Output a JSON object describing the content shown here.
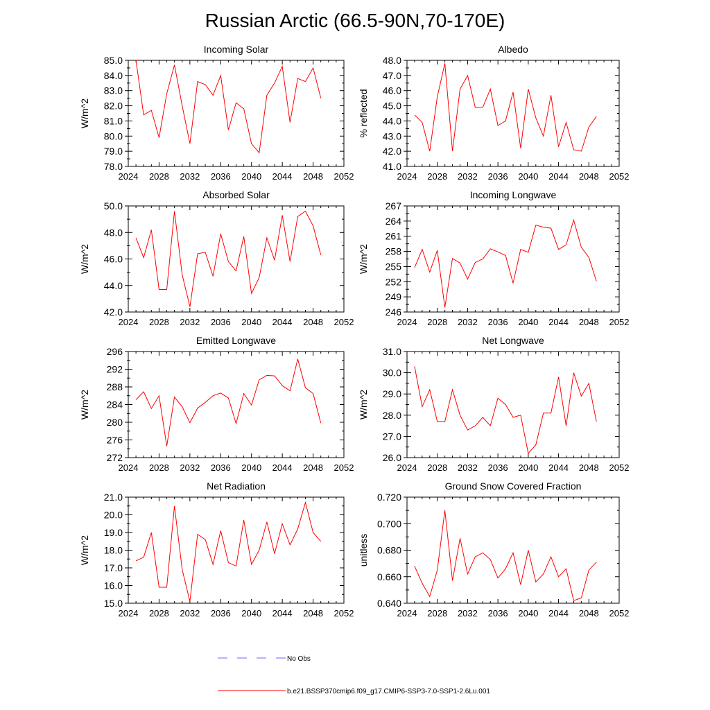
{
  "title": "Russian Arctic (66.5-90N,70-170E)",
  "legend": {
    "obs_label": "No Obs",
    "model_label": "b.e21.BSSP370cmip6.f09_g17.CMIP6-SSP3-7.0-SSP1-2.6Lu.001",
    "obs_color": "#6a6aff",
    "model_color": "#ff0000"
  },
  "chart_data": [
    {
      "type": "line",
      "title": "Incoming Solar",
      "xlabel": "",
      "ylabel": "W/m^2",
      "xlim": [
        2024,
        2052
      ],
      "ylim": [
        78.0,
        85.0
      ],
      "xticks": [
        "2024",
        "2028",
        "2032",
        "2036",
        "2040",
        "2044",
        "2048",
        "2052"
      ],
      "yticks": [
        "78.0",
        "79.0",
        "80.0",
        "81.0",
        "82.0",
        "83.0",
        "84.0",
        "85.0"
      ],
      "series": [
        {
          "x": [
            2025,
            2026,
            2027,
            2028,
            2029,
            2030,
            2031,
            2032,
            2033,
            2034,
            2035,
            2036,
            2037,
            2038,
            2039,
            2040,
            2041,
            2042,
            2043,
            2044,
            2045,
            2046,
            2047,
            2048,
            2049
          ],
          "values": [
            85.0,
            81.4,
            81.7,
            79.9,
            82.8,
            84.7,
            82.0,
            79.5,
            83.6,
            83.4,
            82.7,
            84.0,
            80.4,
            82.2,
            81.8,
            79.5,
            78.9,
            82.7,
            83.5,
            84.6,
            80.9,
            83.8,
            83.6,
            84.5,
            82.5
          ]
        }
      ]
    },
    {
      "type": "line",
      "title": "Albedo",
      "xlabel": "",
      "ylabel": "% reflected",
      "xlim": [
        2024,
        2052
      ],
      "ylim": [
        41.0,
        48.0
      ],
      "xticks": [
        "2024",
        "2028",
        "2032",
        "2036",
        "2040",
        "2044",
        "2048",
        "2052"
      ],
      "yticks": [
        "41.0",
        "42.0",
        "43.0",
        "44.0",
        "45.0",
        "46.0",
        "47.0",
        "48.0"
      ],
      "series": [
        {
          "x": [
            2025,
            2026,
            2027,
            2028,
            2029,
            2030,
            2031,
            2032,
            2033,
            2034,
            2035,
            2036,
            2037,
            2038,
            2039,
            2040,
            2041,
            2042,
            2043,
            2044,
            2045,
            2046,
            2047,
            2048,
            2049
          ],
          "values": [
            44.4,
            43.9,
            42.0,
            45.6,
            47.8,
            42.0,
            46.1,
            47.0,
            44.9,
            44.9,
            46.1,
            43.7,
            44.0,
            45.9,
            42.2,
            46.1,
            44.2,
            43.0,
            45.7,
            42.3,
            43.9,
            42.1,
            42.0,
            43.6,
            44.3
          ]
        }
      ]
    },
    {
      "type": "line",
      "title": "Absorbed Solar",
      "xlabel": "",
      "ylabel": "W/m^2",
      "xlim": [
        2024,
        2052
      ],
      "ylim": [
        42.0,
        50.0
      ],
      "xticks": [
        "2024",
        "2028",
        "2032",
        "2036",
        "2040",
        "2044",
        "2048",
        "2052"
      ],
      "yticks": [
        "42.0",
        "44.0",
        "46.0",
        "48.0",
        "50.0"
      ],
      "series": [
        {
          "x": [
            2025,
            2026,
            2027,
            2028,
            2029,
            2030,
            2031,
            2032,
            2033,
            2034,
            2035,
            2036,
            2037,
            2038,
            2039,
            2040,
            2041,
            2042,
            2043,
            2044,
            2045,
            2046,
            2047,
            2048,
            2049
          ],
          "values": [
            47.6,
            46.1,
            48.2,
            43.7,
            43.7,
            49.6,
            44.8,
            42.4,
            46.4,
            46.5,
            44.7,
            47.9,
            45.8,
            45.1,
            47.7,
            43.4,
            44.6,
            47.6,
            45.9,
            49.3,
            45.8,
            49.2,
            49.6,
            48.5,
            46.3
          ]
        }
      ]
    },
    {
      "type": "line",
      "title": "Incoming Longwave",
      "xlabel": "",
      "ylabel": "W/m^2",
      "xlim": [
        2024,
        2052
      ],
      "ylim": [
        246,
        267
      ],
      "xticks": [
        "2024",
        "2028",
        "2032",
        "2036",
        "2040",
        "2044",
        "2048",
        "2052"
      ],
      "yticks": [
        "246",
        "249",
        "252",
        "255",
        "258",
        "261",
        "264",
        "267"
      ],
      "series": [
        {
          "x": [
            2025,
            2026,
            2027,
            2028,
            2029,
            2030,
            2031,
            2032,
            2033,
            2034,
            2035,
            2036,
            2037,
            2038,
            2039,
            2040,
            2041,
            2042,
            2043,
            2044,
            2045,
            2046,
            2047,
            2048,
            2049
          ],
          "values": [
            254.8,
            258.4,
            253.9,
            258.2,
            246.9,
            256.6,
            255.7,
            252.5,
            255.8,
            256.5,
            258.5,
            257.9,
            257.2,
            251.7,
            258.4,
            257.8,
            263.2,
            262.8,
            262.6,
            258.4,
            259.3,
            264.2,
            258.8,
            256.8,
            252.1
          ]
        }
      ]
    },
    {
      "type": "line",
      "title": "Emitted Longwave",
      "xlabel": "",
      "ylabel": "W/m^2",
      "xlim": [
        2024,
        2052
      ],
      "ylim": [
        272,
        296
      ],
      "xticks": [
        "2024",
        "2028",
        "2032",
        "2036",
        "2040",
        "2044",
        "2048",
        "2052"
      ],
      "yticks": [
        "272",
        "276",
        "280",
        "284",
        "288",
        "292",
        "296"
      ],
      "series": [
        {
          "x": [
            2025,
            2026,
            2027,
            2028,
            2029,
            2030,
            2031,
            2032,
            2033,
            2034,
            2035,
            2036,
            2037,
            2038,
            2039,
            2040,
            2041,
            2042,
            2043,
            2044,
            2045,
            2046,
            2047,
            2048,
            2049
          ],
          "values": [
            285.1,
            286.9,
            283.1,
            286.0,
            274.6,
            285.7,
            283.5,
            279.9,
            283.2,
            284.5,
            286.0,
            286.6,
            285.5,
            279.7,
            286.5,
            283.9,
            289.6,
            290.6,
            290.5,
            288.3,
            287.1,
            294.3,
            287.8,
            286.5,
            279.8
          ]
        }
      ]
    },
    {
      "type": "line",
      "title": "Net Longwave",
      "xlabel": "",
      "ylabel": "W/m^2",
      "xlim": [
        2024,
        2052
      ],
      "ylim": [
        26.0,
        31.0
      ],
      "xticks": [
        "2024",
        "2028",
        "2032",
        "2036",
        "2040",
        "2044",
        "2048",
        "2052"
      ],
      "yticks": [
        "26.0",
        "27.0",
        "28.0",
        "29.0",
        "30.0",
        "31.0"
      ],
      "series": [
        {
          "x": [
            2025,
            2026,
            2027,
            2028,
            2029,
            2030,
            2031,
            2032,
            2033,
            2034,
            2035,
            2036,
            2037,
            2038,
            2039,
            2040,
            2041,
            2042,
            2043,
            2044,
            2045,
            2046,
            2047,
            2048,
            2049
          ],
          "values": [
            30.3,
            28.4,
            29.2,
            27.7,
            27.7,
            29.2,
            28.0,
            27.3,
            27.5,
            27.9,
            27.5,
            28.8,
            28.5,
            27.9,
            28.0,
            26.2,
            26.6,
            28.1,
            28.1,
            29.8,
            27.5,
            30.0,
            28.9,
            29.5,
            27.7
          ]
        }
      ]
    },
    {
      "type": "line",
      "title": "Net Radiation",
      "xlabel": "",
      "ylabel": "W/m^2",
      "xlim": [
        2024,
        2052
      ],
      "ylim": [
        15.0,
        21.0
      ],
      "xticks": [
        "2024",
        "2028",
        "2032",
        "2036",
        "2040",
        "2044",
        "2048",
        "2052"
      ],
      "yticks": [
        "15.0",
        "16.0",
        "17.0",
        "18.0",
        "19.0",
        "20.0",
        "21.0"
      ],
      "series": [
        {
          "x": [
            2025,
            2026,
            2027,
            2028,
            2029,
            2030,
            2031,
            2032,
            2033,
            2034,
            2035,
            2036,
            2037,
            2038,
            2039,
            2040,
            2041,
            2042,
            2043,
            2044,
            2045,
            2046,
            2047,
            2048,
            2049
          ],
          "values": [
            17.4,
            17.6,
            19.0,
            15.9,
            15.9,
            20.5,
            16.9,
            15.1,
            18.9,
            18.6,
            17.2,
            19.1,
            17.3,
            17.1,
            19.7,
            17.2,
            18.0,
            19.6,
            17.8,
            19.5,
            18.3,
            19.2,
            20.7,
            19.0,
            18.5
          ]
        }
      ]
    },
    {
      "type": "line",
      "title": "Ground Snow Covered Fraction",
      "xlabel": "",
      "ylabel": "unitless",
      "xlim": [
        2024,
        2052
      ],
      "ylim": [
        0.64,
        0.72
      ],
      "xticks": [
        "2024",
        "2028",
        "2032",
        "2036",
        "2040",
        "2044",
        "2048",
        "2052"
      ],
      "yticks": [
        "0.640",
        "0.660",
        "0.680",
        "0.700",
        "0.720"
      ],
      "series": [
        {
          "x": [
            2025,
            2026,
            2027,
            2028,
            2029,
            2030,
            2031,
            2032,
            2033,
            2034,
            2035,
            2036,
            2037,
            2038,
            2039,
            2040,
            2041,
            2042,
            2043,
            2044,
            2045,
            2046,
            2047,
            2048,
            2049
          ],
          "values": [
            0.668,
            0.655,
            0.645,
            0.665,
            0.71,
            0.657,
            0.689,
            0.662,
            0.675,
            0.678,
            0.673,
            0.659,
            0.666,
            0.678,
            0.654,
            0.68,
            0.656,
            0.662,
            0.675,
            0.66,
            0.666,
            0.642,
            0.644,
            0.665,
            0.671
          ]
        }
      ]
    }
  ]
}
